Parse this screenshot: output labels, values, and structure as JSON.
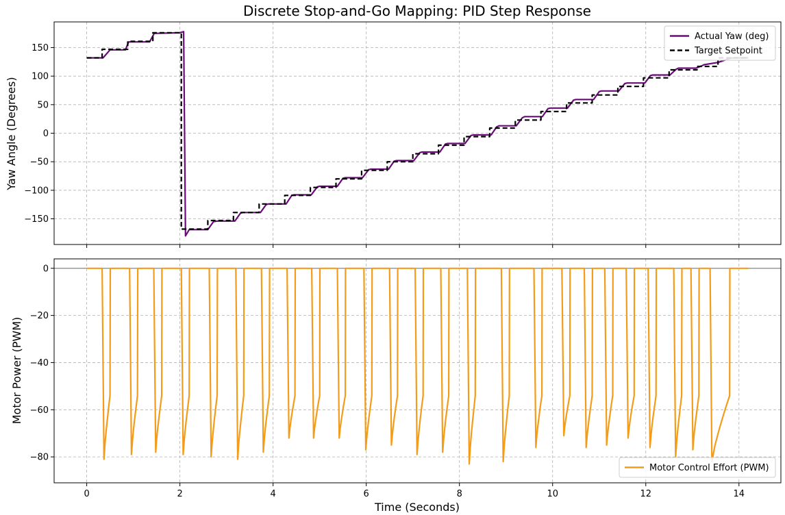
{
  "chart_data": [
    {
      "type": "line",
      "title": "Discrete Stop-and-Go Mapping: PID Step Response",
      "xlabel": "",
      "ylabel": "Yaw Angle (Degrees)",
      "xlim": [
        -0.7,
        14.9
      ],
      "ylim": [
        -195,
        195
      ],
      "xticks": [
        0,
        2,
        4,
        6,
        8,
        10,
        12,
        14
      ],
      "yticks": [
        -150,
        -100,
        -50,
        0,
        50,
        100,
        150
      ],
      "ytick_labels": [
        "−150",
        "−100",
        "−50",
        "0",
        "50",
        "100",
        "150"
      ],
      "grid": true,
      "legend_position": "top-right",
      "series": [
        {
          "name": "Actual Yaw (deg)",
          "color": "#6a0a78",
          "style": "solid",
          "x": [
            0.0,
            0.35,
            0.5,
            0.55,
            0.83,
            0.9,
            0.95,
            1.35,
            1.45,
            1.5,
            2.0,
            2.08,
            2.12,
            2.2,
            2.6,
            2.72,
            2.8,
            3.18,
            3.3,
            3.35,
            3.73,
            3.85,
            3.9,
            4.28,
            4.4,
            4.45,
            4.82,
            4.95,
            5.0,
            5.38,
            5.5,
            5.55,
            5.92,
            6.05,
            6.1,
            6.48,
            6.6,
            6.65,
            7.02,
            7.15,
            7.2,
            7.58,
            7.7,
            7.75,
            8.12,
            8.25,
            8.3,
            8.68,
            8.8,
            8.85,
            9.22,
            9.35,
            9.4,
            9.78,
            9.9,
            9.95,
            10.32,
            10.45,
            10.5,
            10.88,
            11.0,
            11.05,
            11.42,
            11.55,
            11.6,
            11.98,
            12.1,
            12.15,
            12.52,
            12.65,
            12.7,
            13.08,
            13.2,
            13.25,
            13.55,
            13.8,
            13.9,
            14.2
          ],
          "y": [
            132,
            132,
            146,
            146,
            146,
            160,
            160,
            160,
            175,
            175,
            176,
            178,
            -180,
            -169,
            -169,
            -155,
            -154,
            -154,
            -140,
            -139,
            -139,
            -125,
            -124,
            -124,
            -109,
            -108,
            -108,
            -94,
            -93,
            -93,
            -79,
            -78,
            -78,
            -64,
            -63,
            -63,
            -49,
            -48,
            -48,
            -34,
            -33,
            -33,
            -19,
            -18,
            -18,
            -4,
            -3,
            -3,
            11,
            13,
            13,
            27,
            29,
            29,
            43,
            44,
            44,
            58,
            59,
            59,
            73,
            74,
            74,
            87,
            88,
            88,
            101,
            102,
            102,
            112,
            114,
            114,
            118,
            120,
            124,
            131,
            132,
            132
          ]
        },
        {
          "name": "Target Setpoint",
          "color": "#000000",
          "style": "dashed",
          "x": [
            0.0,
            0.33,
            0.33,
            0.88,
            0.88,
            1.42,
            1.42,
            2.03,
            2.03,
            2.6,
            2.6,
            3.15,
            3.15,
            3.7,
            3.7,
            4.25,
            4.25,
            4.8,
            4.8,
            5.35,
            5.35,
            5.9,
            5.9,
            6.45,
            6.45,
            7.0,
            7.0,
            7.55,
            7.55,
            8.1,
            8.1,
            8.65,
            8.65,
            9.2,
            9.2,
            9.75,
            9.75,
            10.3,
            10.3,
            10.85,
            10.85,
            11.4,
            11.4,
            11.95,
            11.95,
            12.5,
            12.5,
            13.1,
            13.1,
            13.55,
            13.55,
            14.2
          ],
          "y": [
            132,
            132,
            147,
            147,
            161,
            161,
            176,
            176,
            -168,
            -168,
            -153,
            -153,
            -139,
            -139,
            -124,
            -124,
            -109,
            -109,
            -95,
            -95,
            -80,
            -80,
            -65,
            -65,
            -50,
            -50,
            -36,
            -36,
            -21,
            -21,
            -6,
            -6,
            9,
            9,
            23,
            23,
            38,
            38,
            53,
            53,
            67,
            67,
            82,
            82,
            97,
            97,
            111,
            111,
            117,
            117,
            132,
            132
          ]
        }
      ]
    },
    {
      "type": "line",
      "title": "",
      "xlabel": "Time (Seconds)",
      "ylabel": "Motor Power (PWM)",
      "xlim": [
        -0.7,
        14.9
      ],
      "ylim": [
        -91,
        4
      ],
      "xticks": [
        0,
        2,
        4,
        6,
        8,
        10,
        12,
        14
      ],
      "yticks": [
        -80,
        -60,
        -40,
        -20,
        0
      ],
      "ytick_labels": [
        "−80",
        "−60",
        "−40",
        "−20",
        "0"
      ],
      "grid": true,
      "legend_position": "bottom-right",
      "series": [
        {
          "name": "Motor Control Effort (PWM)",
          "color": "#f39c1a",
          "style": "solid",
          "pulses": [
            {
              "t0": 0.33,
              "t1": 0.5,
              "min": -81
            },
            {
              "t0": 0.92,
              "t1": 1.09,
              "min": -79
            },
            {
              "t0": 1.44,
              "t1": 1.61,
              "min": -78
            },
            {
              "t0": 2.03,
              "t1": 2.2,
              "min": -79
            },
            {
              "t0": 2.63,
              "t1": 2.8,
              "min": -80
            },
            {
              "t0": 3.2,
              "t1": 3.37,
              "min": -81
            },
            {
              "t0": 3.75,
              "t1": 3.92,
              "min": -78
            },
            {
              "t0": 4.3,
              "t1": 4.47,
              "min": -72
            },
            {
              "t0": 4.83,
              "t1": 5.0,
              "min": -72
            },
            {
              "t0": 5.38,
              "t1": 5.55,
              "min": -72
            },
            {
              "t0": 5.95,
              "t1": 6.12,
              "min": -77
            },
            {
              "t0": 6.5,
              "t1": 6.67,
              "min": -75
            },
            {
              "t0": 7.05,
              "t1": 7.22,
              "min": -79
            },
            {
              "t0": 7.6,
              "t1": 7.77,
              "min": -78
            },
            {
              "t0": 8.17,
              "t1": 8.34,
              "min": -83
            },
            {
              "t0": 8.9,
              "t1": 9.07,
              "min": -82
            },
            {
              "t0": 9.6,
              "t1": 9.77,
              "min": -76
            },
            {
              "t0": 10.2,
              "t1": 10.37,
              "min": -71
            },
            {
              "t0": 10.68,
              "t1": 10.85,
              "min": -76
            },
            {
              "t0": 11.12,
              "t1": 11.29,
              "min": -75
            },
            {
              "t0": 11.58,
              "t1": 11.75,
              "min": -72
            },
            {
              "t0": 12.05,
              "t1": 12.22,
              "min": -76
            },
            {
              "t0": 12.6,
              "t1": 12.77,
              "min": -80
            },
            {
              "t0": 12.97,
              "t1": 13.14,
              "min": -77
            },
            {
              "t0": 13.38,
              "t1": 13.8,
              "min": -82
            }
          ]
        }
      ]
    }
  ]
}
